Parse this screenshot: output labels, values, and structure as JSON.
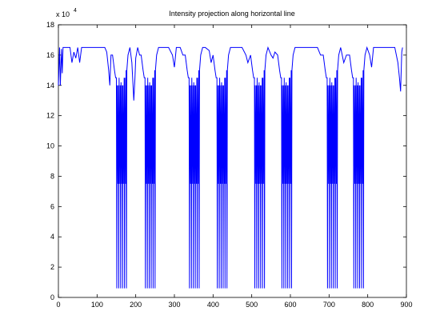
{
  "chart_data": {
    "type": "line",
    "title": "Intensity projection along horizontal line",
    "y_multiplier": {
      "base": "x 10",
      "exponent": "4"
    },
    "color": "#0000ff",
    "xlim": [
      0,
      900
    ],
    "xticks": [
      0,
      100,
      200,
      300,
      400,
      500,
      600,
      700,
      800,
      900
    ],
    "ylim": [
      0,
      18
    ],
    "yticks": [
      0,
      2,
      4,
      6,
      8,
      10,
      12,
      14,
      16,
      18
    ],
    "x": [
      0,
      3,
      5,
      8,
      10,
      12,
      20,
      30,
      35,
      40,
      45,
      50,
      55,
      60,
      70,
      80,
      90,
      100,
      110,
      120,
      125,
      130,
      133,
      136,
      140,
      145,
      148,
      150,
      151,
      152,
      154,
      155,
      156,
      157,
      159,
      160,
      161,
      162,
      164,
      165,
      166,
      167,
      169,
      170,
      171,
      172,
      174,
      175,
      176,
      177,
      180,
      185,
      190,
      195,
      198,
      200,
      205,
      210,
      214,
      219,
      222,
      224,
      225,
      226,
      228,
      229,
      230,
      231,
      233,
      234,
      235,
      236,
      238,
      239,
      240,
      241,
      243,
      244,
      245,
      246,
      248,
      249,
      250,
      251,
      254,
      259,
      265,
      275,
      285,
      295,
      300,
      305,
      315,
      322,
      328,
      333,
      336,
      338,
      339,
      340,
      342,
      343,
      344,
      345,
      347,
      348,
      349,
      350,
      352,
      353,
      354,
      355,
      357,
      358,
      359,
      360,
      362,
      363,
      364,
      365,
      368,
      373,
      380,
      390,
      395,
      400,
      405,
      408,
      410,
      411,
      412,
      414,
      415,
      416,
      417,
      419,
      420,
      421,
      422,
      424,
      425,
      426,
      427,
      429,
      430,
      431,
      432,
      434,
      435,
      436,
      437,
      440,
      445,
      455,
      465,
      475,
      485,
      490,
      497,
      502,
      505,
      507,
      508,
      509,
      511,
      512,
      513,
      514,
      516,
      517,
      518,
      519,
      521,
      522,
      523,
      524,
      526,
      527,
      528,
      529,
      531,
      532,
      533,
      534,
      537,
      542,
      550,
      555,
      560,
      567,
      572,
      575,
      577,
      578,
      579,
      581,
      582,
      583,
      584,
      586,
      587,
      588,
      589,
      591,
      592,
      593,
      594,
      596,
      597,
      598,
      599,
      601,
      602,
      603,
      604,
      607,
      612,
      620,
      630,
      640,
      650,
      660,
      670,
      678,
      685,
      690,
      693,
      695,
      696,
      697,
      699,
      700,
      701,
      702,
      704,
      705,
      706,
      707,
      709,
      710,
      711,
      712,
      714,
      715,
      716,
      717,
      719,
      720,
      721,
      722,
      725,
      730,
      738,
      745,
      753,
      758,
      761,
      763,
      764,
      765,
      767,
      768,
      769,
      770,
      772,
      773,
      774,
      775,
      777,
      778,
      779,
      780,
      782,
      783,
      784,
      785,
      787,
      788,
      789,
      790,
      793,
      798,
      805,
      810,
      815,
      830,
      850,
      870,
      878,
      882,
      885,
      888,
      890
    ],
    "values": [
      14,
      16.5,
      14,
      16.4,
      14.8,
      16.5,
      16.5,
      16.5,
      15.5,
      16.2,
      15.8,
      16.5,
      15.5,
      16.5,
      16.5,
      16.5,
      16.5,
      16.5,
      16.5,
      16.5,
      16.2,
      15,
      14,
      16,
      16,
      15,
      14.5,
      14.5,
      0.6,
      14,
      7.5,
      14,
      0.6,
      14.5,
      7.5,
      14,
      0.6,
      14.2,
      7.5,
      14,
      0.6,
      14,
      7.5,
      14.5,
      0.6,
      14.5,
      7.5,
      15,
      0.6,
      15,
      16,
      16.5,
      15.5,
      13,
      14.5,
      15.8,
      16.5,
      16,
      16,
      15,
      14.5,
      14.5,
      0.6,
      14,
      7.5,
      14,
      0.6,
      14.5,
      7.5,
      14,
      0.6,
      14.2,
      7.5,
      14,
      0.6,
      14,
      7.5,
      14.5,
      0.6,
      14.5,
      7.5,
      15,
      0.6,
      15,
      16,
      16.5,
      16.5,
      16.5,
      16.5,
      16,
      15.2,
      16.5,
      16.5,
      16,
      16,
      15,
      14.5,
      14.5,
      0.6,
      14,
      7.5,
      14,
      0.6,
      14.5,
      7.5,
      14,
      0.6,
      14.2,
      7.5,
      14,
      0.6,
      14,
      7.5,
      14.5,
      0.6,
      14.5,
      7.5,
      15,
      0.6,
      15,
      16,
      16.5,
      16.5,
      16.3,
      15.5,
      16,
      15,
      14.5,
      14.5,
      0.6,
      14,
      7.5,
      14,
      0.6,
      14.5,
      7.5,
      14,
      0.6,
      14.2,
      7.5,
      14,
      0.6,
      14,
      7.5,
      14.5,
      0.6,
      14.5,
      7.5,
      15,
      0.6,
      15,
      16,
      16.5,
      16.5,
      16.5,
      16.5,
      16,
      15.5,
      16,
      15,
      14.5,
      14.5,
      0.6,
      14,
      7.5,
      14,
      0.6,
      14.5,
      7.5,
      14,
      0.6,
      14.2,
      7.5,
      14,
      0.6,
      14,
      7.5,
      14.5,
      0.6,
      14.5,
      7.5,
      15,
      0.6,
      15,
      16,
      16.5,
      16,
      15.8,
      16.2,
      16,
      15,
      14.5,
      14.5,
      0.6,
      14,
      7.5,
      14,
      0.6,
      14.5,
      7.5,
      14,
      0.6,
      14.2,
      7.5,
      14,
      0.6,
      14,
      7.5,
      14.5,
      0.6,
      14.5,
      7.5,
      15,
      0.6,
      15,
      16,
      16.5,
      16.5,
      16.5,
      16.5,
      16.5,
      16.5,
      16.5,
      16,
      16,
      15,
      14.5,
      14.5,
      0.6,
      14,
      7.5,
      14,
      0.6,
      14.5,
      7.5,
      14,
      0.6,
      14.2,
      7.5,
      14,
      0.6,
      14,
      7.5,
      14.5,
      0.6,
      14.5,
      7.5,
      15,
      0.6,
      15,
      16,
      16.5,
      15.5,
      16,
      16,
      15,
      14.5,
      14.5,
      0.6,
      14,
      7.5,
      14,
      0.6,
      14.5,
      7.5,
      14,
      0.6,
      14.2,
      7.5,
      14,
      0.6,
      14,
      7.5,
      14.5,
      0.6,
      14.5,
      7.5,
      15,
      0.6,
      15,
      16,
      16.5,
      16,
      15.2,
      16.5,
      16.5,
      16.5,
      16.5,
      15.5,
      14.5,
      13.6,
      16.2,
      16.5
    ]
  }
}
